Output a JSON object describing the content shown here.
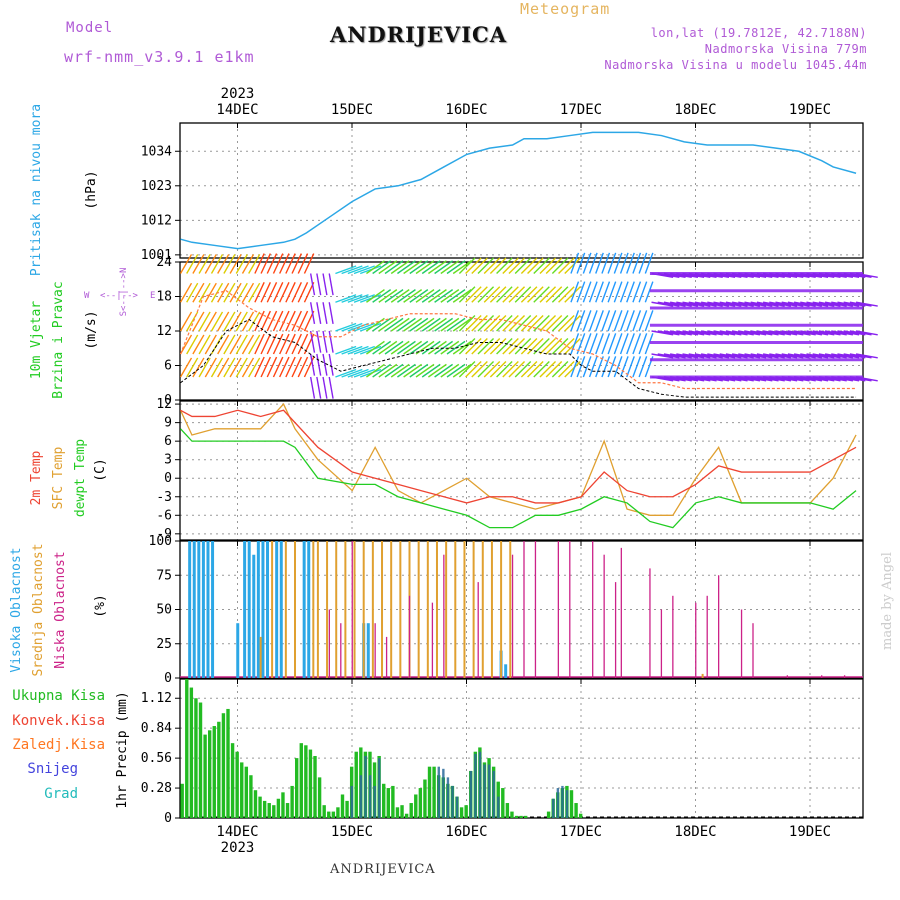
{
  "header": {
    "model_label": "Model",
    "model_name": "wrf-nmm_v3.9.1 e1km",
    "title": "ANDRIJEVICA",
    "meteogram": "Meteogram",
    "lonlat": "lon,lat (19.7812E, 42.7188N)",
    "elevation": "Nadmorska Visina 779m",
    "model_elevation": "Nadmorska Visina u modelu 1045.44m"
  },
  "footer": {
    "station": "ANDRIJEVICA",
    "made_by": "made by Angel"
  },
  "colors": {
    "pressure": "#2ca7e6",
    "wind_label": "#22cc22",
    "temp2m": "#ee4433",
    "sfc": "#e0a030",
    "dewpt": "#22cc22",
    "high_cloud": "#2ca7e6",
    "mid_cloud": "#e0a030",
    "low_cloud": "#cc2288",
    "total_precip": "#22bb22",
    "conv": "#ee4433",
    "freezing": "#ff7722",
    "snow": "#4444dd",
    "grad": "#22bbbb",
    "axis": "#000000",
    "grid": "#999999"
  },
  "chart_data": [
    {
      "type": "line",
      "name": "pressure",
      "ylabel": [
        "Pritisak na nivou mora",
        "(hPa)"
      ],
      "yticks": [
        1001,
        1012,
        1023,
        1034
      ],
      "ylim": [
        1000,
        1043
      ],
      "x_dates": [
        "14DEC",
        "15DEC",
        "16DEC",
        "17DEC",
        "18DEC",
        "19DEC"
      ],
      "x_year": "2023",
      "grid": true,
      "x": [
        0,
        0.1,
        0.3,
        0.5,
        0.7,
        0.9,
        1.0,
        1.1,
        1.3,
        1.5,
        1.7,
        1.9,
        2.1,
        2.3,
        2.5,
        2.7,
        2.9,
        3.0,
        3.2,
        3.4,
        3.6,
        3.8,
        4.0,
        4.2,
        4.4,
        4.6,
        4.8,
        5.0,
        5.2,
        5.4,
        5.6,
        5.7,
        5.9
      ],
      "values": [
        1006,
        1005,
        1004,
        1003,
        1004,
        1005,
        1006,
        1008,
        1013,
        1018,
        1022,
        1023,
        1025,
        1029,
        1033,
        1035,
        1036,
        1038,
        1038,
        1039,
        1040,
        1040,
        1040,
        1039,
        1037,
        1036,
        1036,
        1036,
        1035,
        1034,
        1031,
        1029,
        1027
      ]
    },
    {
      "type": "line",
      "name": "wind",
      "ylabel": [
        "10m Vjetar",
        "Brzina i Pravac",
        "(m/s)"
      ],
      "direction_legend": [
        "W",
        "<--|-->",
        "E",
        "S<--|-->N"
      ],
      "yticks": [
        0,
        6,
        12,
        18,
        24
      ],
      "ylim": [
        0,
        24
      ],
      "series": [
        {
          "name": "speed",
          "x": [
            0,
            0.2,
            0.4,
            0.6,
            0.8,
            1.0,
            1.2,
            1.4,
            1.6,
            1.8,
            2.0,
            2.2,
            2.4,
            2.6,
            2.8,
            3.0,
            3.2,
            3.4,
            3.5,
            3.6,
            3.8,
            4.0,
            4.2,
            4.4,
            4.6,
            4.8,
            5.0,
            5.2,
            5.4,
            5.6,
            5.9
          ],
          "values": [
            3,
            6,
            12,
            14,
            11,
            10,
            7,
            5,
            6,
            7,
            8,
            9,
            9,
            10,
            10,
            9,
            8,
            8,
            6,
            5,
            5,
            2,
            1,
            0.5,
            0.5,
            0.5,
            0.5,
            0.5,
            0.5,
            0.5,
            0.5
          ]
        },
        {
          "name": "gust",
          "x": [
            0,
            0.2,
            0.4,
            0.6,
            0.8,
            1.0,
            1.2,
            1.4,
            1.6,
            1.8,
            2.0,
            2.2,
            2.4,
            2.6,
            2.8,
            3.0,
            3.2,
            3.4,
            3.6,
            3.8,
            4.0,
            4.2,
            4.4,
            4.6,
            4.8,
            5.0,
            5.2,
            5.4,
            5.6,
            5.9
          ],
          "values": [
            8,
            18,
            19,
            16,
            14,
            13,
            11,
            11,
            13,
            14,
            15,
            15,
            15,
            14,
            14,
            13,
            12,
            9,
            8,
            6,
            3,
            3,
            2,
            2,
            2,
            2,
            2,
            2,
            2,
            2
          ]
        }
      ]
    },
    {
      "type": "line",
      "name": "temperature",
      "ylabel": [
        "2m Temp",
        "SFC Temp",
        "dewpt Temp",
        "(C)"
      ],
      "yticks": [
        -9,
        -6,
        -3,
        0,
        3,
        6,
        9,
        12
      ],
      "ylim": [
        -10,
        12.5
      ],
      "series": [
        {
          "name": "2m Temp",
          "x": [
            0,
            0.1,
            0.3,
            0.5,
            0.7,
            0.9,
            1.0,
            1.2,
            1.5,
            1.7,
            1.9,
            2.1,
            2.3,
            2.5,
            2.7,
            2.9,
            3.1,
            3.3,
            3.5,
            3.7,
            3.9,
            4.1,
            4.3,
            4.5,
            4.7,
            4.9,
            5.1,
            5.3,
            5.5,
            5.7,
            5.9
          ],
          "values": [
            11,
            10,
            10,
            11,
            10,
            11,
            9,
            5,
            1,
            0,
            -1,
            -2,
            -3,
            -4,
            -3,
            -3,
            -4,
            -4,
            -3,
            1,
            -2,
            -3,
            -3,
            -1,
            2,
            1,
            1,
            1,
            1,
            3,
            5
          ]
        },
        {
          "name": "SFC Temp",
          "x": [
            0,
            0.1,
            0.3,
            0.5,
            0.7,
            0.9,
            1.0,
            1.2,
            1.5,
            1.7,
            1.9,
            2.1,
            2.3,
            2.5,
            2.7,
            2.9,
            3.1,
            3.3,
            3.5,
            3.7,
            3.9,
            4.1,
            4.3,
            4.5,
            4.7,
            4.9,
            5.1,
            5.3,
            5.5,
            5.7,
            5.9
          ],
          "values": [
            11,
            7,
            8,
            8,
            8,
            12,
            8,
            3,
            -2,
            5,
            -2,
            -4,
            -2,
            0,
            -3,
            -4,
            -5,
            -4,
            -3,
            6,
            -5,
            -6,
            -6,
            0,
            5,
            -4,
            -4,
            -4,
            -4,
            0,
            7
          ]
        },
        {
          "name": "dewpt Temp",
          "x": [
            0,
            0.1,
            0.3,
            0.5,
            0.7,
            0.9,
            1.0,
            1.2,
            1.5,
            1.7,
            1.9,
            2.1,
            2.3,
            2.5,
            2.7,
            2.9,
            3.1,
            3.3,
            3.5,
            3.7,
            3.9,
            4.1,
            4.3,
            4.5,
            4.7,
            4.9,
            5.1,
            5.3,
            5.5,
            5.7,
            5.9
          ],
          "values": [
            8,
            6,
            6,
            6,
            6,
            6,
            5,
            0,
            -1,
            -1,
            -3,
            -4,
            -5,
            -6,
            -8,
            -8,
            -6,
            -6,
            -5,
            -3,
            -4,
            -7,
            -8,
            -4,
            -3,
            -4,
            -4,
            -4,
            -4,
            -5,
            -2
          ]
        }
      ]
    },
    {
      "type": "bar",
      "name": "clouds",
      "ylabel": [
        "Visoka Oblacnost",
        "Srednja Oblacnost",
        "Niska Oblacnost",
        "(%)"
      ],
      "yticks": [
        0,
        25,
        50,
        75,
        100
      ],
      "ylim": [
        0,
        100
      ],
      "series": [
        {
          "name": "Visoka Oblacnost",
          "x": [
            0.08,
            0.12,
            0.16,
            0.2,
            0.24,
            0.28,
            0.5,
            0.56,
            0.6,
            0.64,
            0.68,
            0.72,
            0.76,
            0.84,
            0.88,
            1.08,
            1.12,
            1.6,
            1.64,
            2.8,
            2.84
          ],
          "values": [
            100,
            100,
            100,
            100,
            100,
            100,
            40,
            100,
            100,
            90,
            100,
            100,
            100,
            100,
            100,
            100,
            100,
            40,
            40,
            20,
            10
          ]
        },
        {
          "name": "Srednja Oblacnost",
          "x": [
            0.7,
            0.8,
            0.92,
            1.0,
            1.16,
            1.2,
            1.28,
            1.36,
            1.44,
            1.52,
            1.6,
            1.68,
            1.76,
            1.84,
            1.92,
            2.0,
            2.08,
            2.16,
            2.24,
            2.32,
            2.4,
            2.48,
            2.56,
            2.64,
            2.72,
            2.8,
            2.88,
            4.56
          ],
          "values": [
            30,
            100,
            100,
            100,
            100,
            100,
            100,
            100,
            100,
            100,
            100,
            100,
            100,
            100,
            100,
            100,
            100,
            100,
            100,
            100,
            100,
            100,
            100,
            100,
            100,
            100,
            100,
            3
          ]
        },
        {
          "name": "Niska Oblacnost",
          "x": [
            1.3,
            1.4,
            1.5,
            1.7,
            1.8,
            2.0,
            2.2,
            2.3,
            2.6,
            2.9,
            3.0,
            3.1,
            3.3,
            3.4,
            3.6,
            3.7,
            3.8,
            3.85,
            4.1,
            4.2,
            4.3,
            4.5,
            4.6,
            4.7,
            4.9,
            5.0,
            5.3,
            5.6,
            5.8
          ],
          "values": [
            50,
            40,
            100,
            40,
            30,
            60,
            55,
            90,
            70,
            90,
            100,
            100,
            100,
            100,
            100,
            90,
            70,
            95,
            80,
            50,
            60,
            55,
            60,
            75,
            50,
            40,
            2,
            2,
            2
          ]
        }
      ]
    },
    {
      "type": "bar",
      "name": "precipitation",
      "ylabel": [
        "1hr Precip (mm)"
      ],
      "legend": [
        "Ukupna Kisa",
        "Konvek.Kisa",
        "Zaledj.Kisa",
        "Snijeg",
        "Grad"
      ],
      "yticks": [
        0,
        0.28,
        0.56,
        0.84,
        1.12
      ],
      "ylim": [
        0,
        1.3
      ],
      "x_dates": [
        "14DEC",
        "15DEC",
        "16DEC",
        "17DEC",
        "18DEC",
        "19DEC"
      ],
      "x_year": "2023",
      "series": [
        {
          "name": "Ukupna Kisa",
          "x": [
            0.0,
            0.04,
            0.08,
            0.12,
            0.16,
            0.2,
            0.24,
            0.28,
            0.32,
            0.36,
            0.4,
            0.44,
            0.48,
            0.52,
            0.56,
            0.6,
            0.64,
            0.68,
            0.72,
            0.76,
            0.8,
            0.84,
            0.88,
            0.92,
            0.96,
            1.0,
            1.04,
            1.08,
            1.12,
            1.16,
            1.2,
            1.24,
            1.28,
            1.32,
            1.36,
            1.4,
            1.44,
            1.48,
            1.52,
            1.56,
            1.6,
            1.64,
            1.68,
            1.72,
            1.76,
            1.8,
            1.84,
            1.88,
            1.92,
            1.96,
            2.0,
            2.04,
            2.08,
            2.12,
            2.16,
            2.2,
            2.24,
            2.28,
            2.32,
            2.36,
            2.4,
            2.44,
            2.48,
            2.52,
            2.56,
            2.6,
            2.64,
            2.68,
            2.72,
            2.76,
            2.8,
            2.84,
            2.88,
            2.92,
            2.96,
            3.0,
            3.2,
            3.24,
            3.28,
            3.32,
            3.36,
            3.4,
            3.44,
            3.48
          ],
          "values": [
            0.32,
            1.3,
            1.22,
            1.12,
            1.08,
            0.78,
            0.82,
            0.86,
            0.9,
            0.98,
            1.02,
            0.7,
            0.62,
            0.52,
            0.48,
            0.4,
            0.26,
            0.2,
            0.16,
            0.14,
            0.12,
            0.18,
            0.24,
            0.14,
            0.3,
            0.56,
            0.7,
            0.68,
            0.64,
            0.58,
            0.38,
            0.12,
            0.06,
            0.06,
            0.1,
            0.22,
            0.16,
            0.48,
            0.62,
            0.66,
            0.62,
            0.62,
            0.52,
            0.58,
            0.32,
            0.28,
            0.3,
            0.1,
            0.12,
            0.04,
            0.14,
            0.22,
            0.28,
            0.36,
            0.48,
            0.48,
            0.4,
            0.38,
            0.32,
            0.3,
            0.2,
            0.1,
            0.12,
            0.44,
            0.62,
            0.66,
            0.52,
            0.56,
            0.48,
            0.34,
            0.28,
            0.14,
            0.06,
            0.02,
            0.02,
            0.02,
            0.06,
            0.18,
            0.24,
            0.28,
            0.3,
            0.26,
            0.14,
            0.04
          ]
        },
        {
          "name": "Snijeg",
          "x": [
            1.48,
            1.56,
            1.6,
            1.64,
            1.68,
            1.72,
            2.24,
            2.28,
            2.32,
            2.36,
            2.4,
            2.52,
            2.56,
            2.6,
            2.64,
            2.68,
            2.72,
            2.76,
            3.24,
            3.28,
            3.32,
            3.36
          ],
          "values": [
            0.3,
            0.4,
            0.58,
            0.4,
            0.3,
            0.56,
            0.48,
            0.46,
            0.38,
            0.3,
            0.2,
            0.44,
            0.6,
            0.62,
            0.5,
            0.5,
            0.44,
            0.2,
            0.18,
            0.28,
            0.3,
            0.26
          ]
        }
      ]
    }
  ]
}
